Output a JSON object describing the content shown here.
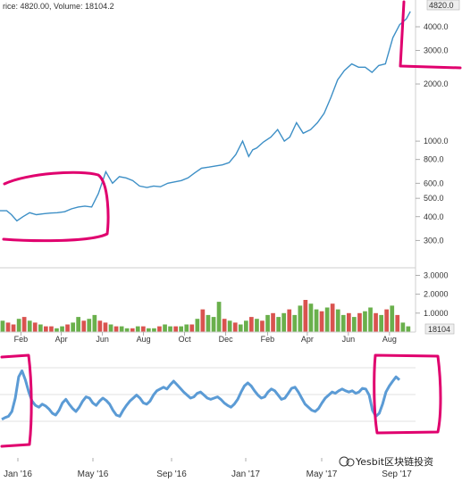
{
  "header": {
    "text": "rice: 4820.00, Volume: 18104.2"
  },
  "colors": {
    "price_line": "#3d8fc6",
    "indicator_line": "#5b9bd5",
    "vol_up": "#6ab04c",
    "vol_down": "#d9534f",
    "annotation": "#e0006e"
  },
  "chart_data": [
    {
      "type": "line",
      "title": "",
      "xlabel": "",
      "ylabel": "",
      "scale": "log",
      "ylim": [
        220,
        5300
      ],
      "y_ticks": [
        "4000.0",
        "3000.0",
        "2000.0",
        "1000.0",
        "800.0",
        "600.0",
        "500.0",
        "400.0",
        "300.0"
      ],
      "x_ticks": [
        "Feb",
        "Apr",
        "Jun",
        "Aug",
        "Oct",
        "Dec",
        "Feb",
        "Apr",
        "Jun",
        "Aug"
      ],
      "last_value_label": "4820.0",
      "series": [
        {
          "x": [
            "2016-01-01",
            "2016-01-11",
            "2016-01-18",
            "2016-01-26",
            "2016-02-04",
            "2016-02-14",
            "2016-02-24",
            "2016-03-06",
            "2016-03-16",
            "2016-03-26",
            "2016-04-06",
            "2016-04-16",
            "2016-04-26",
            "2016-05-06",
            "2016-05-16",
            "2016-05-26",
            "2016-06-06",
            "2016-06-16",
            "2016-06-26",
            "2016-07-06",
            "2016-07-16",
            "2016-07-26",
            "2016-08-06",
            "2016-08-16",
            "2016-08-26",
            "2016-09-06",
            "2016-09-16",
            "2016-09-26",
            "2016-10-06",
            "2016-10-16",
            "2016-10-26",
            "2016-11-06",
            "2016-11-16",
            "2016-11-26",
            "2016-12-06",
            "2016-12-16",
            "2016-12-26",
            "2017-01-04",
            "2017-01-10",
            "2017-01-16",
            "2017-01-26",
            "2017-02-06",
            "2017-02-16",
            "2017-02-26",
            "2017-03-06",
            "2017-03-16",
            "2017-03-26",
            "2017-04-06",
            "2017-04-16",
            "2017-04-26",
            "2017-05-06",
            "2017-05-16",
            "2017-05-26",
            "2017-06-06",
            "2017-06-16",
            "2017-06-26",
            "2017-07-06",
            "2017-07-16",
            "2017-07-26",
            "2017-08-06",
            "2017-08-16",
            "2017-08-26",
            "2017-09-01"
          ],
          "y": [
            430,
            430,
            410,
            380,
            400,
            420,
            410,
            415,
            418,
            420,
            425,
            440,
            450,
            455,
            450,
            530,
            690,
            600,
            650,
            640,
            620,
            580,
            570,
            580,
            575,
            600,
            610,
            620,
            640,
            680,
            720,
            730,
            740,
            750,
            770,
            850,
            1000,
            830,
            900,
            920,
            990,
            1050,
            1150,
            1000,
            1050,
            1250,
            1100,
            1150,
            1250,
            1400,
            1700,
            2100,
            2350,
            2550,
            2450,
            2450,
            2300,
            2500,
            2550,
            3500,
            4100,
            4400,
            4820
          ]
        }
      ]
    },
    {
      "type": "bar",
      "title": "",
      "y_ticks": [
        "3.0000",
        "2.0000",
        "1.0000"
      ],
      "last_value_label": "18104",
      "series": [
        {
          "values": [
            0.6,
            0.5,
            0.4,
            0.7,
            0.8,
            0.6,
            0.5,
            0.4,
            0.3,
            0.3,
            0.2,
            0.3,
            0.4,
            0.5,
            0.8,
            0.6,
            0.7,
            0.9,
            0.6,
            0.5,
            0.4,
            0.3,
            0.3,
            0.2,
            0.2,
            0.3,
            0.3,
            0.2,
            0.2,
            0.3,
            0.4,
            0.3,
            0.3,
            0.3,
            0.4,
            0.4,
            0.7,
            1.2,
            0.9,
            0.8,
            1.6,
            0.7,
            0.6,
            0.5,
            0.4,
            0.6,
            0.8,
            0.7,
            0.6,
            0.9,
            1.0,
            0.8,
            1.0,
            1.2,
            0.9,
            1.4,
            1.7,
            1.5,
            1.2,
            1.1,
            1.3,
            1.5,
            1.2,
            0.9,
            1.0,
            0.8,
            1.0,
            1.1,
            1.3,
            1.0,
            0.9,
            1.2,
            1.4,
            0.9,
            0.5,
            0.3
          ],
          "up": [
            1,
            0,
            0,
            1,
            0,
            1,
            0,
            1,
            0,
            0,
            1,
            1,
            0,
            1,
            1,
            0,
            1,
            1,
            0,
            0,
            1,
            0,
            1,
            1,
            0,
            1,
            0,
            1,
            1,
            0,
            1,
            1,
            0,
            1,
            1,
            0,
            1,
            0,
            1,
            1,
            1,
            0,
            1,
            0,
            1,
            1,
            0,
            1,
            0,
            1,
            0,
            1,
            1,
            0,
            1,
            1,
            0,
            1,
            1,
            0,
            1,
            0,
            1,
            1,
            0,
            1,
            0,
            1,
            1,
            0,
            1,
            0,
            1,
            0,
            1,
            1
          ]
        }
      ]
    },
    {
      "type": "line",
      "title": "",
      "x_ticks": [
        "Jan '16",
        "May '16",
        "Sep '16",
        "Jan '17",
        "May '17",
        "Sep '17"
      ],
      "series": [
        {
          "values": [
            0.15,
            0.18,
            0.2,
            0.28,
            0.5,
            0.85,
            0.95,
            0.8,
            0.6,
            0.45,
            0.38,
            0.35,
            0.4,
            0.37,
            0.32,
            0.25,
            0.22,
            0.3,
            0.42,
            0.48,
            0.4,
            0.33,
            0.28,
            0.35,
            0.45,
            0.52,
            0.5,
            0.42,
            0.38,
            0.45,
            0.5,
            0.46,
            0.4,
            0.3,
            0.22,
            0.2,
            0.3,
            0.38,
            0.45,
            0.5,
            0.55,
            0.5,
            0.42,
            0.4,
            0.45,
            0.55,
            0.62,
            0.65,
            0.68,
            0.65,
            0.72,
            0.78,
            0.72,
            0.66,
            0.6,
            0.55,
            0.5,
            0.52,
            0.58,
            0.6,
            0.55,
            0.5,
            0.48,
            0.5,
            0.52,
            0.48,
            0.42,
            0.38,
            0.35,
            0.4,
            0.48,
            0.6,
            0.7,
            0.75,
            0.7,
            0.62,
            0.55,
            0.5,
            0.52,
            0.6,
            0.65,
            0.62,
            0.55,
            0.48,
            0.5,
            0.58,
            0.66,
            0.68,
            0.6,
            0.5,
            0.4,
            0.35,
            0.3,
            0.28,
            0.33,
            0.42,
            0.5,
            0.55,
            0.6,
            0.58,
            0.62,
            0.65,
            0.62,
            0.6,
            0.62,
            0.58,
            0.6,
            0.66,
            0.65,
            0.55,
            0.3,
            0.2,
            0.25,
            0.4,
            0.6,
            0.7,
            0.78,
            0.85,
            0.8
          ]
        }
      ]
    }
  ],
  "watermark": {
    "text": "Yesbit区块链投资"
  }
}
